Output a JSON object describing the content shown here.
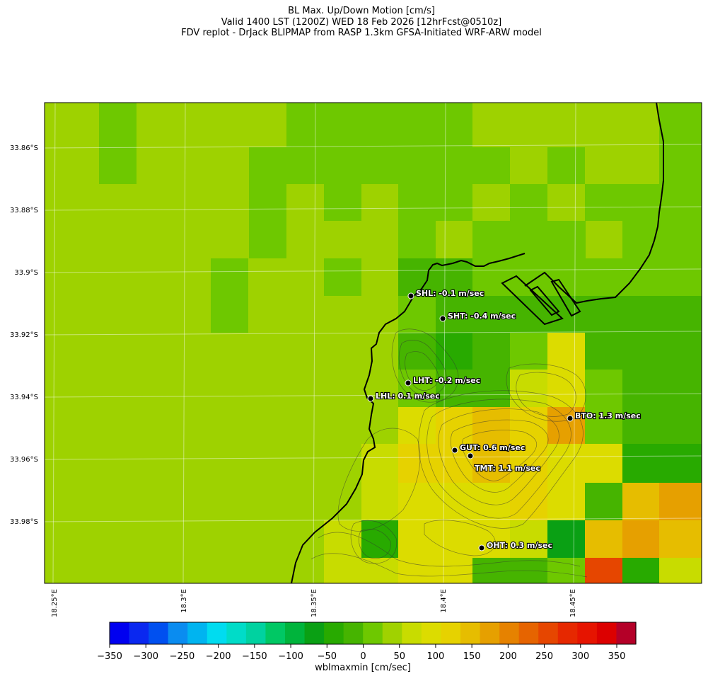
{
  "title": {
    "line1": "BL Max. Up/Down Motion [cm/s]",
    "line2": "Valid 1400 LST (1200Z) WED 18 Feb 2026 [12hrFcst@0510z]",
    "line3": "FDV replot - DrJack BLIPMAP from RASP 1.3km GFSA-Initiated WRF-ARW model"
  },
  "map": {
    "lat_labels": [
      "33.86°S",
      "33.88°S",
      "33.9°S",
      "33.92°S",
      "33.94°S",
      "33.96°S",
      "33.98°S"
    ],
    "lon_labels": [
      "18.25°E",
      "18.3°E",
      "18.35°E",
      "18.4°E",
      "18.45°E"
    ],
    "stations": [
      {
        "id": "SHL",
        "label": "SHL: -0.1 m/sec"
      },
      {
        "id": "SHT",
        "label": "SHT: -0.4 m/sec"
      },
      {
        "id": "LHT",
        "label": "LHT: -0.2 m/sec"
      },
      {
        "id": "LHL",
        "label": "LHL: 0.1 m/sec"
      },
      {
        "id": "BTO",
        "label": "BTO: 1.3 m/sec"
      },
      {
        "id": "GUT",
        "label": "GUT: 0.6 m/sec"
      },
      {
        "id": "TMT",
        "label": "TMT: 1.1 m/sec"
      },
      {
        "id": "OHT",
        "label": "OHT: 0.3 m/sec"
      }
    ],
    "background_color": "#9ed200"
  },
  "colorbar": {
    "ticks": [
      "−350",
      "−300",
      "−250",
      "−200",
      "−150",
      "−100",
      "−50",
      "0",
      "50",
      "100",
      "150",
      "200",
      "250",
      "300",
      "350"
    ],
    "colors": [
      "#0000f0",
      "#0a28f0",
      "#0050f0",
      "#0a8cf0",
      "#00b4f0",
      "#00dcf0",
      "#00dcc8",
      "#00d2a0",
      "#00c864",
      "#00b43c",
      "#0aa014",
      "#28aa00",
      "#46b400",
      "#6ec800",
      "#a0d200",
      "#c8dc00",
      "#dcdc00",
      "#e6d200",
      "#e6bd00",
      "#e6a000",
      "#e68200",
      "#e66400",
      "#e64600",
      "#e62800",
      "#e61400",
      "#dc0000",
      "#b40028"
    ],
    "label": "wblmaxmin [cm/sec]"
  }
}
